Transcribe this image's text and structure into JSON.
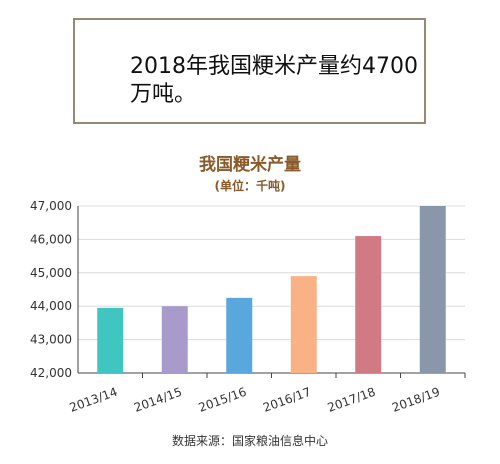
{
  "callout": {
    "text": "2018年我国粳米产量约4700万吨。"
  },
  "chart_data": {
    "type": "bar",
    "title": "我国粳米产量",
    "subtitle": "(单位：千吨)",
    "categories": [
      "2013/14",
      "2014/15",
      "2015/16",
      "2016/17",
      "2017/18",
      "2018/19"
    ],
    "values": [
      43950,
      44000,
      44250,
      44900,
      46100,
      47000
    ],
    "colors": [
      "#3fc6c0",
      "#a99acc",
      "#59a8dd",
      "#f9b285",
      "#d17a84",
      "#8a97ab"
    ],
    "ylim": [
      42000,
      47000
    ],
    "yticks": [
      "42,000",
      "43,000",
      "44,000",
      "45,000",
      "46,000",
      "47,000"
    ],
    "grid": true
  },
  "footer": {
    "source": "数据来源：国家粮油信息中心"
  }
}
